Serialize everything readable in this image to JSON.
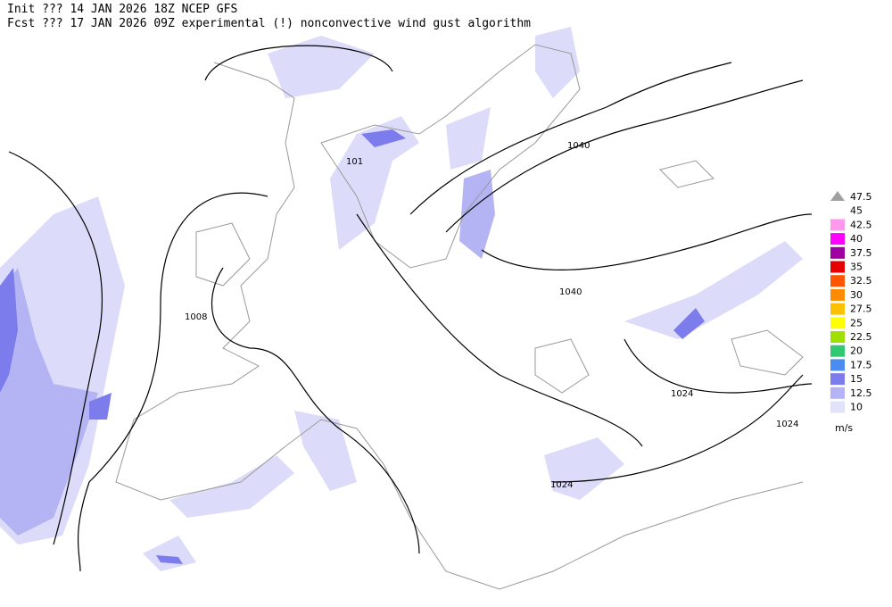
{
  "header": {
    "line1": "Init  ??? 14 JAN 2026 18Z   NCEP GFS",
    "line2": "Fcst ??? 17 JAN 2026 09Z   experimental (!) nonconvective wind gust algorithm"
  },
  "isobar_labels": [
    "1040",
    "1040",
    "1008",
    "1024",
    "1024",
    "1024",
    "101"
  ],
  "legend": {
    "unit": "m/s",
    "items": [
      {
        "label": "47.5",
        "color": "#a0a0a0"
      },
      {
        "label": "45",
        "color": "#ffffff"
      },
      {
        "label": "42.5",
        "color": "#ff99ee"
      },
      {
        "label": "40",
        "color": "#ff00ff"
      },
      {
        "label": "37.5",
        "color": "#a000a0"
      },
      {
        "label": "35",
        "color": "#e80000"
      },
      {
        "label": "32.5",
        "color": "#ff5500"
      },
      {
        "label": "30",
        "color": "#ff8c00"
      },
      {
        "label": "27.5",
        "color": "#ffc000"
      },
      {
        "label": "25",
        "color": "#ffff00"
      },
      {
        "label": "22.5",
        "color": "#a0e000"
      },
      {
        "label": "20",
        "color": "#30c870"
      },
      {
        "label": "17.5",
        "color": "#4a8cf0"
      },
      {
        "label": "15",
        "color": "#7c7cec"
      },
      {
        "label": "12.5",
        "color": "#b4b4f4"
      },
      {
        "label": "10",
        "color": "#e2e2fa"
      }
    ]
  }
}
